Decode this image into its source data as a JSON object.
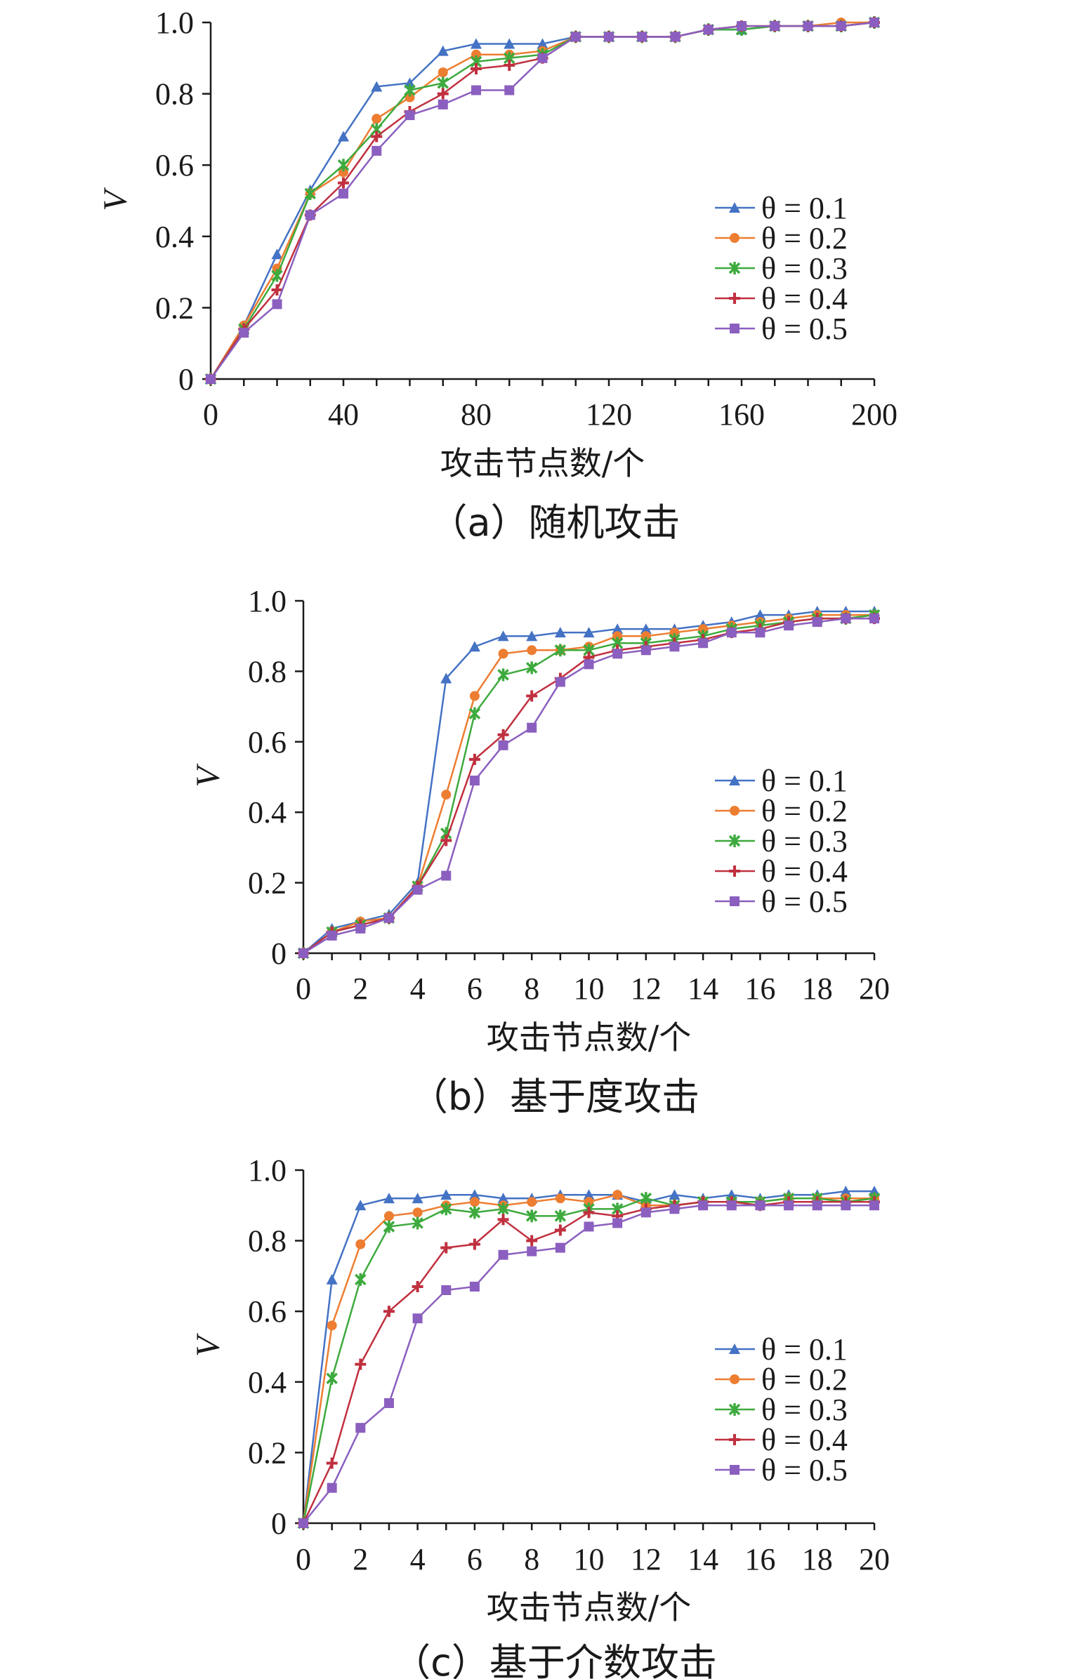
{
  "colors": {
    "theta_0_1": "#4472C4",
    "theta_0_2": "#ED7D31",
    "theta_0_3": "#3DAA3D",
    "theta_0_4": "#C0303F",
    "theta_0_5": "#8B5FBF",
    "axis": "#1a1a1a"
  },
  "chart_data": [
    {
      "type": "line",
      "caption": "（a）随机攻击",
      "xlabel": "攻击节点数/个",
      "ylabel": "V",
      "xlim": [
        0,
        200
      ],
      "ylim": [
        0,
        1.0
      ],
      "x_ticks": [
        "0",
        "40",
        "80",
        "120",
        "160",
        "200"
      ],
      "y_ticks": [
        "0",
        "0.2",
        "0.4",
        "0.6",
        "0.8",
        "1.0"
      ],
      "legend_position": "right",
      "x": [
        0,
        10,
        20,
        30,
        40,
        50,
        60,
        70,
        80,
        90,
        100,
        110,
        120,
        130,
        140,
        150,
        160,
        170,
        180,
        190,
        200
      ],
      "series": [
        {
          "name": "θ = 0.1",
          "marker": "triangle",
          "color_key": "theta_0_1",
          "values": [
            0,
            0.15,
            0.35,
            0.53,
            0.68,
            0.82,
            0.83,
            0.92,
            0.94,
            0.94,
            0.94,
            0.96,
            0.96,
            0.96,
            0.96,
            0.98,
            0.98,
            0.99,
            0.99,
            0.99,
            1.0
          ]
        },
        {
          "name": "θ = 0.2",
          "marker": "circle",
          "color_key": "theta_0_2",
          "values": [
            0,
            0.15,
            0.31,
            0.52,
            0.58,
            0.73,
            0.79,
            0.86,
            0.91,
            0.91,
            0.92,
            0.96,
            0.96,
            0.96,
            0.96,
            0.98,
            0.99,
            0.99,
            0.99,
            1.0,
            1.0
          ]
        },
        {
          "name": "θ = 0.3",
          "marker": "asterisk",
          "color_key": "theta_0_3",
          "values": [
            0,
            0.14,
            0.29,
            0.52,
            0.6,
            0.7,
            0.81,
            0.83,
            0.89,
            0.9,
            0.91,
            0.96,
            0.96,
            0.96,
            0.96,
            0.98,
            0.98,
            0.99,
            0.99,
            0.99,
            1.0
          ]
        },
        {
          "name": "θ = 0.4",
          "marker": "plus",
          "color_key": "theta_0_4",
          "values": [
            0,
            0.14,
            0.25,
            0.46,
            0.55,
            0.68,
            0.75,
            0.8,
            0.87,
            0.88,
            0.9,
            0.96,
            0.96,
            0.96,
            0.96,
            0.98,
            0.99,
            0.99,
            0.99,
            0.99,
            1.0
          ]
        },
        {
          "name": "θ = 0.5",
          "marker": "square",
          "color_key": "theta_0_5",
          "values": [
            0,
            0.13,
            0.21,
            0.46,
            0.52,
            0.64,
            0.74,
            0.77,
            0.81,
            0.81,
            0.9,
            0.96,
            0.96,
            0.96,
            0.96,
            0.98,
            0.99,
            0.99,
            0.99,
            0.99,
            1.0
          ]
        }
      ]
    },
    {
      "type": "line",
      "caption": "（b）基于度攻击",
      "xlabel": "攻击节点数/个",
      "ylabel": "V",
      "xlim": [
        0,
        20
      ],
      "ylim": [
        0,
        1.0
      ],
      "x_ticks": [
        "0",
        "2",
        "4",
        "6",
        "8",
        "10",
        "12",
        "14",
        "16",
        "18",
        "20"
      ],
      "y_ticks": [
        "0",
        "0.2",
        "0.4",
        "0.6",
        "0.8",
        "1.0"
      ],
      "legend_position": "right",
      "x": [
        0,
        1,
        2,
        3,
        4,
        5,
        6,
        7,
        8,
        9,
        10,
        11,
        12,
        13,
        14,
        15,
        16,
        17,
        18,
        19,
        20
      ],
      "series": [
        {
          "name": "θ = 0.1",
          "marker": "triangle",
          "color_key": "theta_0_1",
          "values": [
            0,
            0.07,
            0.09,
            0.11,
            0.2,
            0.78,
            0.87,
            0.9,
            0.9,
            0.91,
            0.91,
            0.92,
            0.92,
            0.92,
            0.93,
            0.94,
            0.96,
            0.96,
            0.97,
            0.97,
            0.97
          ]
        },
        {
          "name": "θ = 0.2",
          "marker": "circle",
          "color_key": "theta_0_2",
          "values": [
            0,
            0.06,
            0.09,
            0.1,
            0.19,
            0.45,
            0.73,
            0.85,
            0.86,
            0.86,
            0.87,
            0.9,
            0.9,
            0.91,
            0.92,
            0.93,
            0.94,
            0.95,
            0.96,
            0.96,
            0.96
          ]
        },
        {
          "name": "θ = 0.3",
          "marker": "asterisk",
          "color_key": "theta_0_3",
          "values": [
            0,
            0.06,
            0.08,
            0.1,
            0.19,
            0.34,
            0.68,
            0.79,
            0.81,
            0.86,
            0.86,
            0.88,
            0.88,
            0.89,
            0.9,
            0.92,
            0.93,
            0.94,
            0.95,
            0.95,
            0.96
          ]
        },
        {
          "name": "θ = 0.4",
          "marker": "plus",
          "color_key": "theta_0_4",
          "values": [
            0,
            0.06,
            0.08,
            0.1,
            0.19,
            0.32,
            0.55,
            0.62,
            0.73,
            0.78,
            0.84,
            0.86,
            0.87,
            0.88,
            0.89,
            0.91,
            0.92,
            0.94,
            0.95,
            0.95,
            0.95
          ]
        },
        {
          "name": "θ = 0.5",
          "marker": "square",
          "color_key": "theta_0_5",
          "values": [
            0,
            0.05,
            0.07,
            0.1,
            0.18,
            0.22,
            0.49,
            0.59,
            0.64,
            0.77,
            0.82,
            0.85,
            0.86,
            0.87,
            0.88,
            0.91,
            0.91,
            0.93,
            0.94,
            0.95,
            0.95
          ]
        }
      ]
    },
    {
      "type": "line",
      "caption": "（c）基于介数攻击",
      "xlabel": "攻击节点数/个",
      "ylabel": "V",
      "xlim": [
        0,
        20
      ],
      "ylim": [
        0,
        1.0
      ],
      "x_ticks": [
        "0",
        "2",
        "4",
        "6",
        "8",
        "10",
        "12",
        "14",
        "16",
        "18",
        "20"
      ],
      "y_ticks": [
        "0",
        "0.2",
        "0.4",
        "0.6",
        "0.8",
        "1.0"
      ],
      "legend_position": "right",
      "x": [
        0,
        1,
        2,
        3,
        4,
        5,
        6,
        7,
        8,
        9,
        10,
        11,
        12,
        13,
        14,
        15,
        16,
        17,
        18,
        19,
        20
      ],
      "series": [
        {
          "name": "θ = 0.1",
          "marker": "triangle",
          "color_key": "theta_0_1",
          "values": [
            0,
            0.69,
            0.9,
            0.92,
            0.92,
            0.93,
            0.93,
            0.92,
            0.92,
            0.93,
            0.93,
            0.93,
            0.91,
            0.93,
            0.92,
            0.93,
            0.92,
            0.93,
            0.93,
            0.94,
            0.94
          ]
        },
        {
          "name": "θ = 0.2",
          "marker": "circle",
          "color_key": "theta_0_2",
          "values": [
            0,
            0.56,
            0.79,
            0.87,
            0.88,
            0.9,
            0.91,
            0.9,
            0.91,
            0.92,
            0.91,
            0.93,
            0.9,
            0.9,
            0.91,
            0.91,
            0.91,
            0.92,
            0.92,
            0.92,
            0.92
          ]
        },
        {
          "name": "θ = 0.3",
          "marker": "asterisk",
          "color_key": "theta_0_3",
          "values": [
            0,
            0.41,
            0.69,
            0.84,
            0.85,
            0.89,
            0.88,
            0.89,
            0.87,
            0.87,
            0.89,
            0.89,
            0.92,
            0.9,
            0.91,
            0.91,
            0.91,
            0.92,
            0.92,
            0.91,
            0.92
          ]
        },
        {
          "name": "θ = 0.4",
          "marker": "plus",
          "color_key": "theta_0_4",
          "values": [
            0,
            0.17,
            0.45,
            0.6,
            0.67,
            0.78,
            0.79,
            0.86,
            0.8,
            0.83,
            0.88,
            0.87,
            0.89,
            0.9,
            0.91,
            0.91,
            0.9,
            0.91,
            0.91,
            0.91,
            0.91
          ]
        },
        {
          "name": "θ = 0.5",
          "marker": "square",
          "color_key": "theta_0_5",
          "values": [
            0,
            0.1,
            0.27,
            0.34,
            0.58,
            0.66,
            0.67,
            0.76,
            0.77,
            0.78,
            0.84,
            0.85,
            0.88,
            0.89,
            0.9,
            0.9,
            0.9,
            0.9,
            0.9,
            0.9,
            0.9
          ]
        }
      ]
    }
  ]
}
